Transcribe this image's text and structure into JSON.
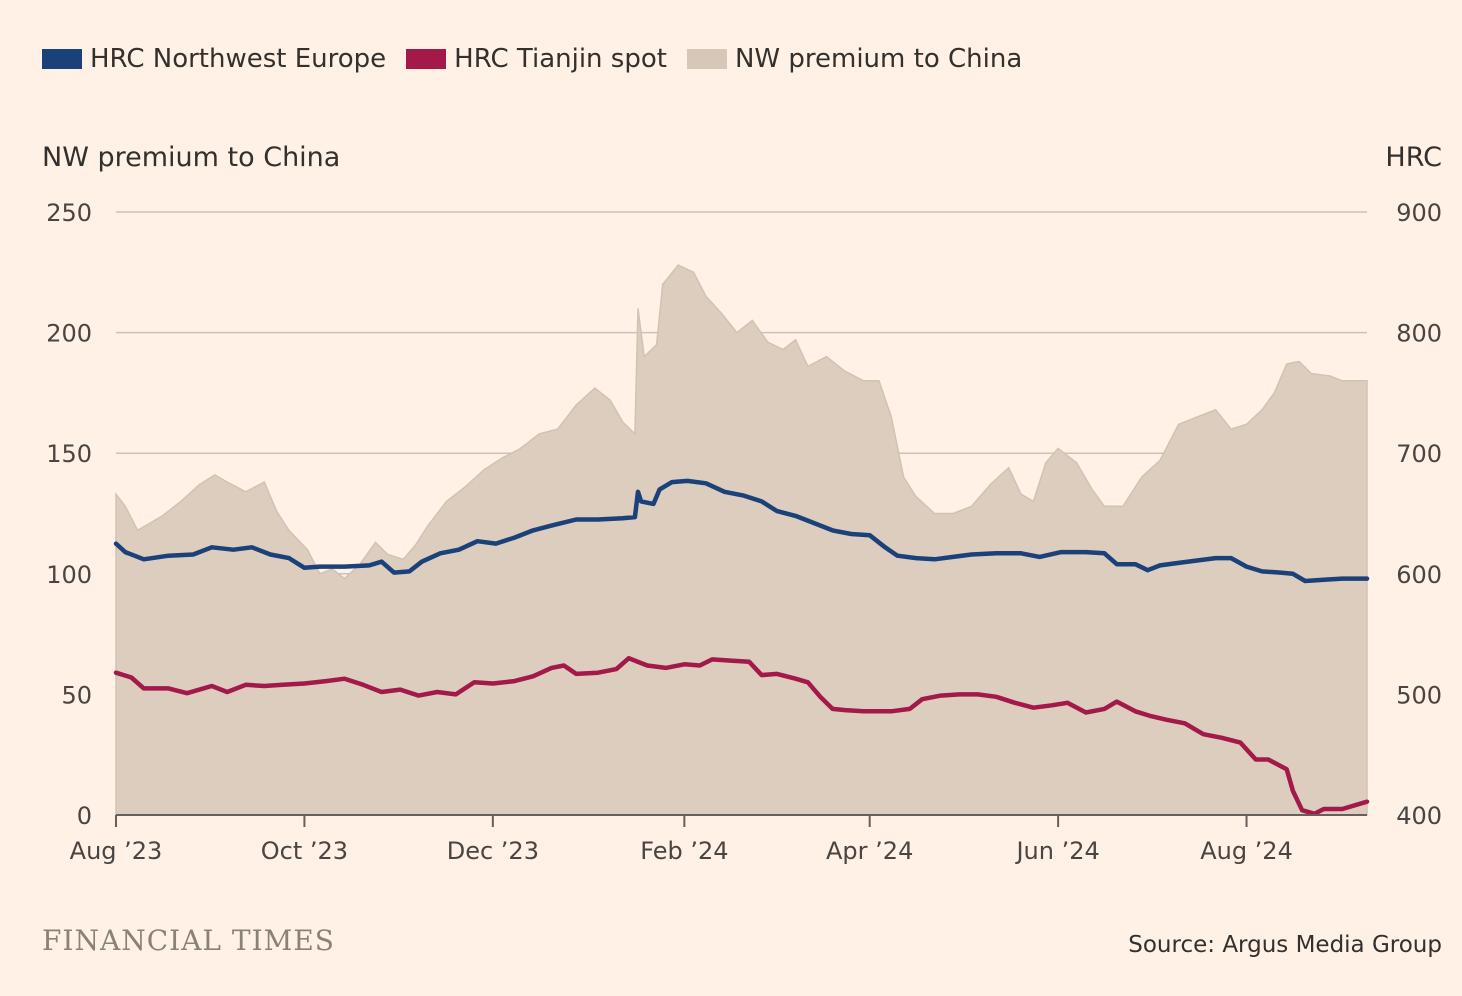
{
  "legend": [
    {
      "label": "HRC Northwest Europe",
      "color": "#1B417A"
    },
    {
      "label": "HRC Tianjin spot",
      "color": "#A3194A"
    },
    {
      "label": "NW premium to China",
      "color": "#D6C7B8"
    }
  ],
  "footer": {
    "logo": "FINANCIAL TIMES",
    "source": "Source: Argus Media Group"
  },
  "chart_data": {
    "type": "line",
    "left_axis": {
      "title": "NW premium to China",
      "ticks": [
        0,
        50,
        100,
        150,
        200,
        250
      ],
      "range": [
        0,
        250
      ]
    },
    "right_axis": {
      "title": "HRC",
      "ticks": [
        400,
        500,
        600,
        700,
        800,
        900
      ],
      "range": [
        400,
        900
      ]
    },
    "x_axis": {
      "ticks": [
        "Aug ’23",
        "Oct ’23",
        "Dec ’23",
        "Feb ’24",
        "Apr ’24",
        "Jun ’24",
        "Aug ’24"
      ],
      "range": [
        "2023-08-01",
        "2024-09-09"
      ]
    },
    "grid": true,
    "series": [
      {
        "name": "NW premium to China",
        "type": "area",
        "axis": "left",
        "color": "#DCCDBF",
        "points": [
          [
            "2023-08-01",
            133
          ],
          [
            "2023-08-04",
            128
          ],
          [
            "2023-08-08",
            118
          ],
          [
            "2023-08-12",
            121
          ],
          [
            "2023-08-16",
            124
          ],
          [
            "2023-08-22",
            130
          ],
          [
            "2023-08-28",
            137
          ],
          [
            "2023-09-02",
            141
          ],
          [
            "2023-09-06",
            138
          ],
          [
            "2023-09-12",
            134
          ],
          [
            "2023-09-18",
            138
          ],
          [
            "2023-09-22",
            126
          ],
          [
            "2023-09-26",
            118
          ],
          [
            "2023-10-02",
            110
          ],
          [
            "2023-10-06",
            100
          ],
          [
            "2023-10-10",
            102
          ],
          [
            "2023-10-14",
            98
          ],
          [
            "2023-10-19",
            104
          ],
          [
            "2023-10-24",
            113
          ],
          [
            "2023-10-28",
            108
          ],
          [
            "2023-11-02",
            106
          ],
          [
            "2023-11-06",
            112
          ],
          [
            "2023-11-10",
            120
          ],
          [
            "2023-11-16",
            130
          ],
          [
            "2023-11-22",
            136
          ],
          [
            "2023-11-28",
            143
          ],
          [
            "2023-12-04",
            148
          ],
          [
            "2023-12-10",
            152
          ],
          [
            "2023-12-16",
            158
          ],
          [
            "2023-12-22",
            160
          ],
          [
            "2023-12-28",
            170
          ],
          [
            "2024-01-03",
            177
          ],
          [
            "2024-01-08",
            172
          ],
          [
            "2024-01-12",
            163
          ],
          [
            "2024-01-16",
            158
          ],
          [
            "2024-01-17",
            210
          ],
          [
            "2024-01-19",
            190
          ],
          [
            "2024-01-23",
            195
          ],
          [
            "2024-01-25",
            220
          ],
          [
            "2024-01-30",
            228
          ],
          [
            "2024-02-04",
            225
          ],
          [
            "2024-02-08",
            215
          ],
          [
            "2024-02-13",
            208
          ],
          [
            "2024-02-18",
            200
          ],
          [
            "2024-02-23",
            205
          ],
          [
            "2024-02-28",
            196
          ],
          [
            "2024-03-04",
            193
          ],
          [
            "2024-03-08",
            197
          ],
          [
            "2024-03-12",
            186
          ],
          [
            "2024-03-18",
            190
          ],
          [
            "2024-03-24",
            184
          ],
          [
            "2024-03-30",
            180
          ],
          [
            "2024-04-04",
            180
          ],
          [
            "2024-04-08",
            165
          ],
          [
            "2024-04-12",
            140
          ],
          [
            "2024-04-16",
            132
          ],
          [
            "2024-04-22",
            125
          ],
          [
            "2024-04-28",
            125
          ],
          [
            "2024-05-04",
            128
          ],
          [
            "2024-05-10",
            137
          ],
          [
            "2024-05-16",
            144
          ],
          [
            "2024-05-20",
            133
          ],
          [
            "2024-05-24",
            130
          ],
          [
            "2024-05-28",
            146
          ],
          [
            "2024-06-01",
            152
          ],
          [
            "2024-06-07",
            146
          ],
          [
            "2024-06-12",
            135
          ],
          [
            "2024-06-16",
            128
          ],
          [
            "2024-06-22",
            128
          ],
          [
            "2024-06-28",
            140
          ],
          [
            "2024-07-04",
            147
          ],
          [
            "2024-07-10",
            162
          ],
          [
            "2024-07-16",
            165
          ],
          [
            "2024-07-22",
            168
          ],
          [
            "2024-07-27",
            160
          ],
          [
            "2024-08-01",
            162
          ],
          [
            "2024-08-06",
            168
          ],
          [
            "2024-08-10",
            175
          ],
          [
            "2024-08-14",
            187
          ],
          [
            "2024-08-18",
            188
          ],
          [
            "2024-08-22",
            183
          ],
          [
            "2024-08-28",
            182
          ],
          [
            "2024-09-01",
            180
          ],
          [
            "2024-09-09",
            180
          ]
        ]
      },
      {
        "name": "HRC Northwest Europe",
        "type": "line",
        "axis": "right",
        "color": "#1B417A",
        "points": [
          [
            "2023-08-01",
            625
          ],
          [
            "2023-08-04",
            618
          ],
          [
            "2023-08-10",
            612
          ],
          [
            "2023-08-18",
            615
          ],
          [
            "2023-08-26",
            616
          ],
          [
            "2023-09-01",
            622
          ],
          [
            "2023-09-08",
            620
          ],
          [
            "2023-09-14",
            622
          ],
          [
            "2023-09-20",
            616
          ],
          [
            "2023-09-26",
            613
          ],
          [
            "2023-10-01",
            605
          ],
          [
            "2023-10-06",
            606
          ],
          [
            "2023-10-14",
            606
          ],
          [
            "2023-10-22",
            607
          ],
          [
            "2023-10-26",
            610
          ],
          [
            "2023-10-30",
            601
          ],
          [
            "2023-11-04",
            602
          ],
          [
            "2023-11-08",
            610
          ],
          [
            "2023-11-14",
            617
          ],
          [
            "2023-11-20",
            620
          ],
          [
            "2023-11-26",
            627
          ],
          [
            "2023-12-02",
            625
          ],
          [
            "2023-12-08",
            630
          ],
          [
            "2023-12-14",
            636
          ],
          [
            "2023-12-20",
            640
          ],
          [
            "2023-12-28",
            645
          ],
          [
            "2024-01-04",
            645
          ],
          [
            "2024-01-12",
            646
          ],
          [
            "2024-01-16",
            647
          ],
          [
            "2024-01-17",
            668
          ],
          [
            "2024-01-18",
            660
          ],
          [
            "2024-01-22",
            658
          ],
          [
            "2024-01-24",
            670
          ],
          [
            "2024-01-28",
            676
          ],
          [
            "2024-02-02",
            677
          ],
          [
            "2024-02-08",
            675
          ],
          [
            "2024-02-14",
            668
          ],
          [
            "2024-02-20",
            665
          ],
          [
            "2024-02-26",
            660
          ],
          [
            "2024-03-02",
            652
          ],
          [
            "2024-03-08",
            648
          ],
          [
            "2024-03-14",
            642
          ],
          [
            "2024-03-20",
            636
          ],
          [
            "2024-03-26",
            633
          ],
          [
            "2024-04-01",
            632
          ],
          [
            "2024-04-06",
            622
          ],
          [
            "2024-04-10",
            615
          ],
          [
            "2024-04-16",
            613
          ],
          [
            "2024-04-22",
            612
          ],
          [
            "2024-04-28",
            614
          ],
          [
            "2024-05-04",
            616
          ],
          [
            "2024-05-12",
            617
          ],
          [
            "2024-05-20",
            617
          ],
          [
            "2024-05-26",
            614
          ],
          [
            "2024-06-02",
            618
          ],
          [
            "2024-06-10",
            618
          ],
          [
            "2024-06-16",
            617
          ],
          [
            "2024-06-20",
            608
          ],
          [
            "2024-06-26",
            608
          ],
          [
            "2024-06-30",
            603
          ],
          [
            "2024-07-04",
            607
          ],
          [
            "2024-07-10",
            609
          ],
          [
            "2024-07-16",
            611
          ],
          [
            "2024-07-22",
            613
          ],
          [
            "2024-07-27",
            613
          ],
          [
            "2024-08-01",
            606
          ],
          [
            "2024-08-06",
            602
          ],
          [
            "2024-08-12",
            601
          ],
          [
            "2024-08-16",
            600
          ],
          [
            "2024-08-20",
            594
          ],
          [
            "2024-08-26",
            595
          ],
          [
            "2024-09-01",
            596
          ],
          [
            "2024-09-09",
            596
          ]
        ]
      },
      {
        "name": "HRC Tianjin spot",
        "type": "line",
        "axis": "right",
        "color": "#A3194A",
        "points": [
          [
            "2023-08-01",
            518
          ],
          [
            "2023-08-06",
            514
          ],
          [
            "2023-08-10",
            505
          ],
          [
            "2023-08-18",
            505
          ],
          [
            "2023-08-24",
            501
          ],
          [
            "2023-09-01",
            507
          ],
          [
            "2023-09-06",
            502
          ],
          [
            "2023-09-12",
            508
          ],
          [
            "2023-09-18",
            507
          ],
          [
            "2023-09-24",
            508
          ],
          [
            "2023-10-01",
            509
          ],
          [
            "2023-10-08",
            511
          ],
          [
            "2023-10-14",
            513
          ],
          [
            "2023-10-20",
            508
          ],
          [
            "2023-10-26",
            502
          ],
          [
            "2023-11-01",
            504
          ],
          [
            "2023-11-07",
            499
          ],
          [
            "2023-11-13",
            502
          ],
          [
            "2023-11-19",
            500
          ],
          [
            "2023-11-25",
            510
          ],
          [
            "2023-12-01",
            509
          ],
          [
            "2023-12-08",
            511
          ],
          [
            "2023-12-14",
            515
          ],
          [
            "2023-12-20",
            522
          ],
          [
            "2023-12-24",
            524
          ],
          [
            "2023-12-28",
            517
          ],
          [
            "2024-01-04",
            518
          ],
          [
            "2024-01-10",
            521
          ],
          [
            "2024-01-14",
            530
          ],
          [
            "2024-01-20",
            524
          ],
          [
            "2024-01-26",
            522
          ],
          [
            "2024-02-01",
            525
          ],
          [
            "2024-02-06",
            524
          ],
          [
            "2024-02-10",
            529
          ],
          [
            "2024-02-16",
            528
          ],
          [
            "2024-02-22",
            527
          ],
          [
            "2024-02-26",
            516
          ],
          [
            "2024-03-02",
            517
          ],
          [
            "2024-03-08",
            513
          ],
          [
            "2024-03-12",
            510
          ],
          [
            "2024-03-16",
            498
          ],
          [
            "2024-03-20",
            488
          ],
          [
            "2024-03-24",
            487
          ],
          [
            "2024-03-30",
            486
          ],
          [
            "2024-04-04",
            486
          ],
          [
            "2024-04-08",
            486
          ],
          [
            "2024-04-14",
            488
          ],
          [
            "2024-04-18",
            496
          ],
          [
            "2024-04-24",
            499
          ],
          [
            "2024-04-30",
            500
          ],
          [
            "2024-05-06",
            500
          ],
          [
            "2024-05-12",
            498
          ],
          [
            "2024-05-18",
            493
          ],
          [
            "2024-05-24",
            489
          ],
          [
            "2024-05-30",
            491
          ],
          [
            "2024-06-04",
            493
          ],
          [
            "2024-06-10",
            485
          ],
          [
            "2024-06-16",
            488
          ],
          [
            "2024-06-20",
            494
          ],
          [
            "2024-06-26",
            486
          ],
          [
            "2024-07-01",
            482
          ],
          [
            "2024-07-06",
            479
          ],
          [
            "2024-07-12",
            476
          ],
          [
            "2024-07-18",
            467
          ],
          [
            "2024-07-24",
            464
          ],
          [
            "2024-07-30",
            460
          ],
          [
            "2024-08-04",
            446
          ],
          [
            "2024-08-08",
            446
          ],
          [
            "2024-08-14",
            438
          ],
          [
            "2024-08-16",
            420
          ],
          [
            "2024-08-19",
            404
          ],
          [
            "2024-08-23",
            401
          ],
          [
            "2024-08-26",
            405
          ],
          [
            "2024-09-01",
            405
          ],
          [
            "2024-09-09",
            411
          ]
        ]
      }
    ]
  }
}
